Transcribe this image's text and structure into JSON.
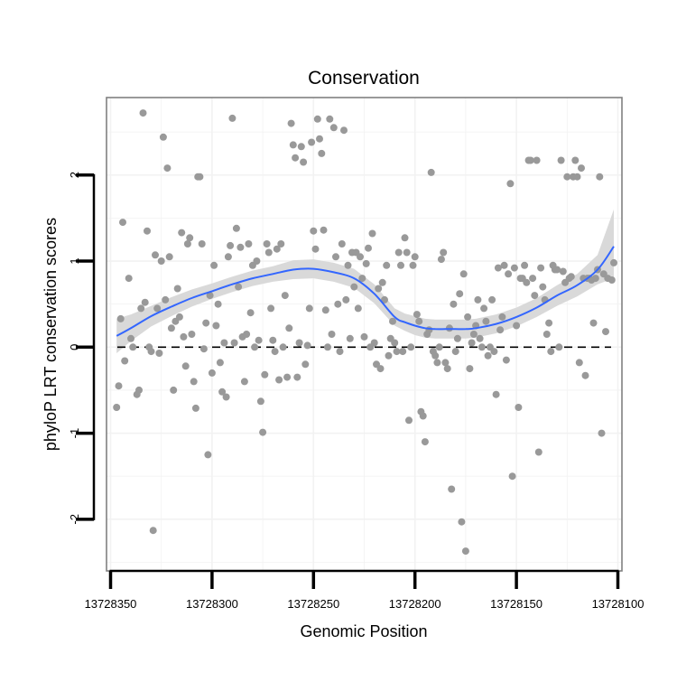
{
  "chart_data": {
    "type": "scatter",
    "title": "Conservation",
    "xlabel": "Genomic Position",
    "ylabel": "phyloP LRT conservation scores",
    "x_reversed": true,
    "xlim": [
      13728098,
      13728352
    ],
    "ylim": [
      -2.6,
      2.9
    ],
    "xticks": [
      13728350,
      13728300,
      13728250,
      13728200,
      13728150,
      13728100
    ],
    "xtick_labels": [
      "13728350",
      "13728300",
      "13728250",
      "13728200",
      "13728150",
      "13728100"
    ],
    "yticks": [
      -2,
      -1,
      0,
      1,
      2
    ],
    "ytick_labels": [
      "-2",
      "-1",
      "0",
      "1",
      "2"
    ],
    "grid": true,
    "reference_line": {
      "y": 0,
      "style": "dashed"
    },
    "colors": {
      "points": "#999999",
      "smooth": "#3366FF",
      "ribbon": "#D9D9D9",
      "panel_border": "#808080",
      "grid": "#F2F2F2"
    },
    "series": [
      {
        "kind": "points",
        "points": [
          [
            13728347,
            -0.7
          ],
          [
            13728346,
            -0.45
          ],
          [
            13728345,
            0.33
          ],
          [
            13728344,
            1.45
          ],
          [
            13728343,
            -0.16
          ],
          [
            13728341,
            0.8
          ],
          [
            13728340,
            0.1
          ],
          [
            13728339,
            0.0
          ],
          [
            13728337,
            -0.55
          ],
          [
            13728336,
            -0.5
          ],
          [
            13728335,
            0.45
          ],
          [
            13728334,
            2.72
          ],
          [
            13728333,
            0.52
          ],
          [
            13728332,
            1.35
          ],
          [
            13728331,
            0.0
          ],
          [
            13728330,
            -0.05
          ],
          [
            13728329,
            -2.13
          ],
          [
            13728328,
            1.07
          ],
          [
            13728327,
            0.45
          ],
          [
            13728326,
            -0.07
          ],
          [
            13728325,
            1.0
          ],
          [
            13728324,
            2.44
          ],
          [
            13728323,
            0.55
          ],
          [
            13728322,
            2.08
          ],
          [
            13728321,
            1.05
          ],
          [
            13728320,
            0.22
          ],
          [
            13728319,
            -0.5
          ],
          [
            13728318,
            0.3
          ],
          [
            13728317,
            0.68
          ],
          [
            13728316,
            0.35
          ],
          [
            13728315,
            1.33
          ],
          [
            13728314,
            0.12
          ],
          [
            13728313,
            -0.22
          ],
          [
            13728312,
            1.2
          ],
          [
            13728311,
            1.27
          ],
          [
            13728310,
            0.15
          ],
          [
            13728309,
            -0.4
          ],
          [
            13728308,
            -0.71
          ],
          [
            13728307,
            1.98
          ],
          [
            13728306,
            1.98
          ],
          [
            13728305,
            1.2
          ],
          [
            13728304,
            -0.02
          ],
          [
            13728303,
            0.28
          ],
          [
            13728302,
            -1.25
          ],
          [
            13728301,
            0.6
          ],
          [
            13728300,
            -0.3
          ],
          [
            13728299,
            0.95
          ],
          [
            13728298,
            0.25
          ],
          [
            13728297,
            0.5
          ],
          [
            13728296,
            -0.18
          ],
          [
            13728295,
            -0.52
          ],
          [
            13728294,
            0.05
          ],
          [
            13728293,
            -0.58
          ],
          [
            13728292,
            1.05
          ],
          [
            13728291,
            1.18
          ],
          [
            13728290,
            2.66
          ],
          [
            13728289,
            0.05
          ],
          [
            13728288,
            1.38
          ],
          [
            13728287,
            0.7
          ],
          [
            13728286,
            1.16
          ],
          [
            13728285,
            0.12
          ],
          [
            13728284,
            -0.4
          ],
          [
            13728283,
            0.15
          ],
          [
            13728282,
            1.2
          ],
          [
            13728281,
            0.4
          ],
          [
            13728280,
            0.95
          ],
          [
            13728279,
            0.0
          ],
          [
            13728278,
            1.0
          ],
          [
            13728277,
            0.08
          ],
          [
            13728276,
            -0.63
          ],
          [
            13728275,
            -0.99
          ],
          [
            13728274,
            -0.32
          ],
          [
            13728273,
            1.2
          ],
          [
            13728272,
            1.1
          ],
          [
            13728271,
            0.45
          ],
          [
            13728270,
            0.08
          ],
          [
            13728269,
            -0.05
          ],
          [
            13728268,
            1.14
          ],
          [
            13728267,
            -0.38
          ],
          [
            13728266,
            1.2
          ],
          [
            13728265,
            0.0
          ],
          [
            13728264,
            0.6
          ],
          [
            13728263,
            -0.35
          ],
          [
            13728262,
            0.22
          ],
          [
            13728261,
            2.6
          ],
          [
            13728260,
            2.35
          ],
          [
            13728259,
            2.2
          ],
          [
            13728258,
            -0.35
          ],
          [
            13728257,
            0.05
          ],
          [
            13728256,
            2.33
          ],
          [
            13728255,
            2.15
          ],
          [
            13728254,
            -0.2
          ],
          [
            13728253,
            0.02
          ],
          [
            13728252,
            0.45
          ],
          [
            13728251,
            2.38
          ],
          [
            13728250,
            1.35
          ],
          [
            13728249,
            1.14
          ],
          [
            13728248,
            2.65
          ],
          [
            13728247,
            2.42
          ],
          [
            13728246,
            2.25
          ],
          [
            13728245,
            1.36
          ],
          [
            13728244,
            0.43
          ],
          [
            13728243,
            0.0
          ],
          [
            13728242,
            2.65
          ],
          [
            13728241,
            0.15
          ],
          [
            13728240,
            2.55
          ],
          [
            13728239,
            1.05
          ],
          [
            13728238,
            0.5
          ],
          [
            13728237,
            -0.05
          ],
          [
            13728236,
            1.2
          ],
          [
            13728235,
            2.52
          ],
          [
            13728234,
            0.55
          ],
          [
            13728233,
            0.95
          ],
          [
            13728232,
            0.1
          ],
          [
            13728231,
            1.1
          ],
          [
            13728230,
            0.7
          ],
          [
            13728229,
            1.1
          ],
          [
            13728228,
            0.45
          ],
          [
            13728227,
            1.05
          ],
          [
            13728226,
            0.8
          ],
          [
            13728225,
            0.12
          ],
          [
            13728224,
            0.97
          ],
          [
            13728223,
            1.15
          ],
          [
            13728222,
            0.0
          ],
          [
            13728221,
            1.32
          ],
          [
            13728220,
            0.05
          ],
          [
            13728219,
            -0.2
          ],
          [
            13728218,
            0.68
          ],
          [
            13728217,
            -0.25
          ],
          [
            13728216,
            0.75
          ],
          [
            13728215,
            0.55
          ],
          [
            13728214,
            0.95
          ],
          [
            13728213,
            -0.1
          ],
          [
            13728212,
            0.1
          ],
          [
            13728211,
            0.3
          ],
          [
            13728210,
            0.05
          ],
          [
            13728209,
            -0.05
          ],
          [
            13728208,
            1.1
          ],
          [
            13728207,
            0.95
          ],
          [
            13728206,
            -0.05
          ],
          [
            13728205,
            1.27
          ],
          [
            13728204,
            1.1
          ],
          [
            13728203,
            -0.85
          ],
          [
            13728202,
            0.0
          ],
          [
            13728201,
            0.95
          ],
          [
            13728200,
            1.05
          ],
          [
            13728199,
            0.38
          ],
          [
            13728198,
            0.3
          ],
          [
            13728197,
            -0.75
          ],
          [
            13728196,
            -0.8
          ],
          [
            13728195,
            -1.1
          ],
          [
            13728194,
            0.15
          ],
          [
            13728193,
            0.2
          ],
          [
            13728192,
            2.03
          ],
          [
            13728191,
            -0.05
          ],
          [
            13728190,
            -0.1
          ],
          [
            13728189,
            -0.18
          ],
          [
            13728188,
            0.0
          ],
          [
            13728187,
            1.02
          ],
          [
            13728186,
            1.1
          ],
          [
            13728185,
            -0.18
          ],
          [
            13728184,
            -0.25
          ],
          [
            13728183,
            0.22
          ],
          [
            13728182,
            -1.65
          ],
          [
            13728181,
            0.5
          ],
          [
            13728180,
            -0.05
          ],
          [
            13728179,
            0.1
          ],
          [
            13728178,
            0.62
          ],
          [
            13728177,
            -2.03
          ],
          [
            13728176,
            0.85
          ],
          [
            13728175,
            -2.37
          ],
          [
            13728174,
            0.35
          ],
          [
            13728173,
            -0.25
          ],
          [
            13728172,
            0.05
          ],
          [
            13728171,
            0.15
          ],
          [
            13728170,
            0.25
          ],
          [
            13728169,
            0.55
          ],
          [
            13728168,
            0.1
          ],
          [
            13728167,
            0.0
          ],
          [
            13728166,
            0.45
          ],
          [
            13728165,
            0.3
          ],
          [
            13728164,
            -0.1
          ],
          [
            13728163,
            0.0
          ],
          [
            13728162,
            0.55
          ],
          [
            13728161,
            -0.05
          ],
          [
            13728160,
            -0.55
          ],
          [
            13728159,
            0.92
          ],
          [
            13728158,
            0.2
          ],
          [
            13728157,
            0.35
          ],
          [
            13728156,
            0.95
          ],
          [
            13728155,
            -0.15
          ],
          [
            13728154,
            0.85
          ],
          [
            13728153,
            1.9
          ],
          [
            13728152,
            -1.5
          ],
          [
            13728151,
            0.92
          ],
          [
            13728150,
            0.25
          ],
          [
            13728149,
            -0.7
          ],
          [
            13728148,
            0.8
          ],
          [
            13728147,
            0.8
          ],
          [
            13728146,
            0.95
          ],
          [
            13728145,
            0.75
          ],
          [
            13728144,
            2.17
          ],
          [
            13728143,
            2.17
          ],
          [
            13728142,
            0.8
          ],
          [
            13728141,
            0.6
          ],
          [
            13728140,
            2.17
          ],
          [
            13728139,
            -1.22
          ],
          [
            13728138,
            0.92
          ],
          [
            13728137,
            0.7
          ],
          [
            13728136,
            0.55
          ],
          [
            13728135,
            0.15
          ],
          [
            13728134,
            0.28
          ],
          [
            13728133,
            -0.05
          ],
          [
            13728132,
            0.95
          ],
          [
            13728131,
            0.9
          ],
          [
            13728130,
            0.9
          ],
          [
            13728129,
            0.0
          ],
          [
            13728128,
            2.17
          ],
          [
            13728127,
            0.88
          ],
          [
            13728126,
            0.75
          ],
          [
            13728125,
            1.98
          ],
          [
            13728124,
            0.8
          ],
          [
            13728123,
            0.82
          ],
          [
            13728122,
            1.98
          ],
          [
            13728121,
            2.17
          ],
          [
            13728120,
            1.98
          ],
          [
            13728119,
            -0.18
          ],
          [
            13728118,
            2.08
          ],
          [
            13728117,
            0.8
          ],
          [
            13728116,
            -0.33
          ],
          [
            13728115,
            0.8
          ],
          [
            13728114,
            0.8
          ],
          [
            13728113,
            0.78
          ],
          [
            13728112,
            0.28
          ],
          [
            13728111,
            0.8
          ],
          [
            13728110,
            0.9
          ],
          [
            13728109,
            1.98
          ],
          [
            13728108,
            -1.0
          ],
          [
            13728107,
            0.85
          ],
          [
            13728106,
            0.18
          ],
          [
            13728105,
            0.8
          ],
          [
            13728103,
            0.78
          ],
          [
            13728102,
            0.98
          ]
        ]
      },
      {
        "kind": "smooth",
        "x": [
          13728347,
          13728340,
          13728330,
          13728320,
          13728310,
          13728300,
          13728290,
          13728280,
          13728270,
          13728260,
          13728250,
          13728240,
          13728230,
          13728220,
          13728210,
          13728205,
          13728200,
          13728195,
          13728190,
          13728185,
          13728180,
          13728175,
          13728170,
          13728160,
          13728150,
          13728140,
          13728130,
          13728120,
          13728110,
          13728102
        ],
        "y": [
          0.13,
          0.22,
          0.36,
          0.47,
          0.57,
          0.65,
          0.73,
          0.8,
          0.85,
          0.9,
          0.91,
          0.87,
          0.8,
          0.62,
          0.35,
          0.29,
          0.25,
          0.22,
          0.21,
          0.21,
          0.21,
          0.21,
          0.22,
          0.27,
          0.35,
          0.46,
          0.6,
          0.72,
          0.9,
          1.17
        ],
        "lower": [
          -0.07,
          0.07,
          0.24,
          0.36,
          0.47,
          0.56,
          0.64,
          0.71,
          0.76,
          0.79,
          0.8,
          0.76,
          0.69,
          0.51,
          0.25,
          0.19,
          0.14,
          0.11,
          0.1,
          0.1,
          0.1,
          0.1,
          0.11,
          0.16,
          0.24,
          0.35,
          0.48,
          0.59,
          0.73,
          0.8
        ],
        "upper": [
          0.33,
          0.38,
          0.48,
          0.58,
          0.67,
          0.74,
          0.82,
          0.89,
          0.94,
          1.01,
          1.02,
          0.98,
          0.91,
          0.73,
          0.45,
          0.39,
          0.36,
          0.33,
          0.32,
          0.32,
          0.32,
          0.32,
          0.33,
          0.38,
          0.46,
          0.57,
          0.72,
          0.85,
          1.07,
          1.6
        ]
      }
    ]
  }
}
